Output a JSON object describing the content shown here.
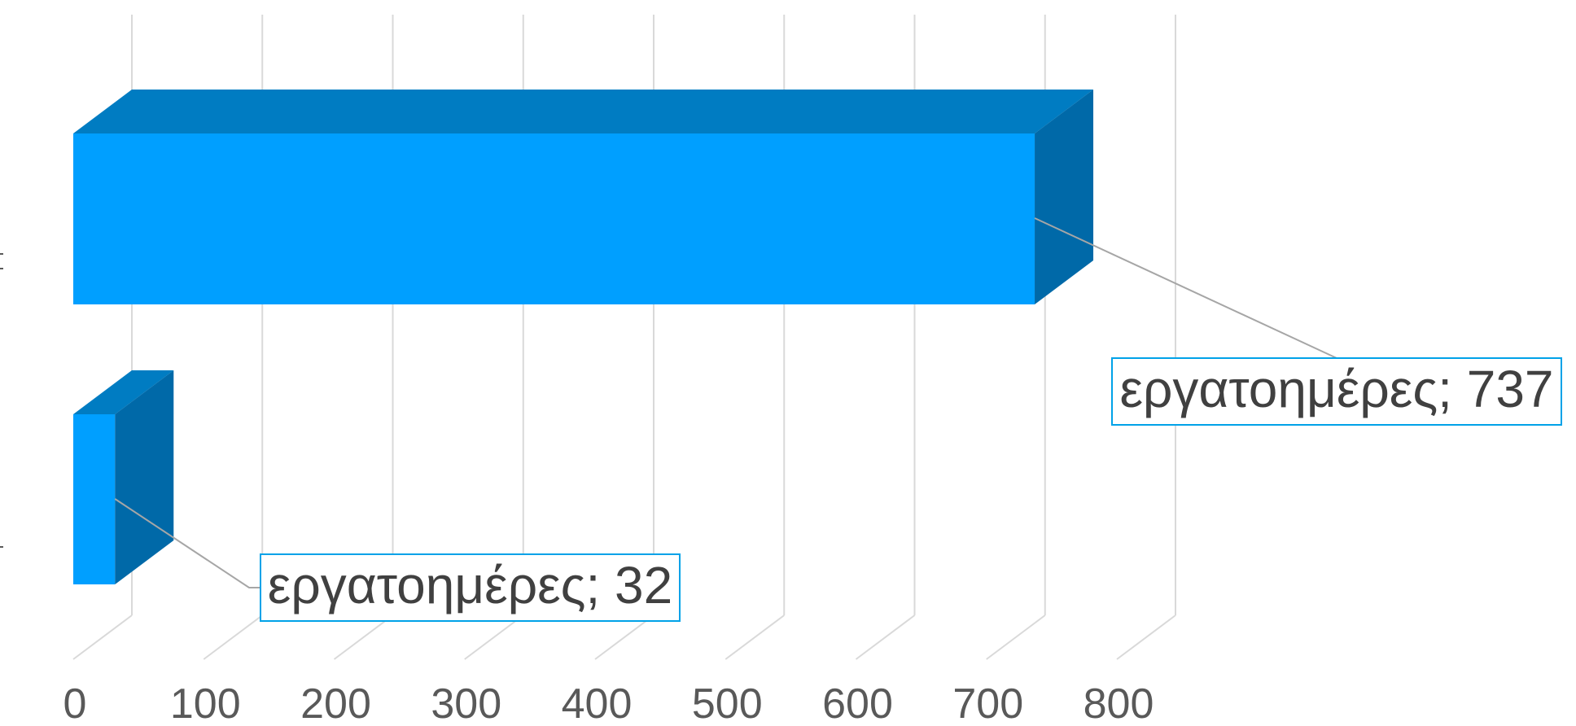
{
  "chart_data": {
    "type": "bar",
    "orientation": "horizontal",
    "style": "3d",
    "series": [
      {
        "values": [
          737,
          32
        ]
      }
    ],
    "data_labels": [
      "εργατοημέρες; 737",
      "εργατοημέρες; 32"
    ],
    "xlim": [
      0,
      800
    ],
    "ticks": [
      0,
      100,
      200,
      300,
      400,
      500,
      600,
      700,
      800
    ],
    "tick_labels": [
      "0",
      "100",
      "200",
      "300",
      "400",
      "500",
      "600",
      "700",
      "800"
    ],
    "grid": true,
    "legend": "none",
    "colors": {
      "bar_front": "#009FFF",
      "bar_top": "#007CC2",
      "bar_side": "#0069A8",
      "grid": "#D9D9D9",
      "label_border": "#00A2E8",
      "leader": "#A6A6A6"
    }
  }
}
